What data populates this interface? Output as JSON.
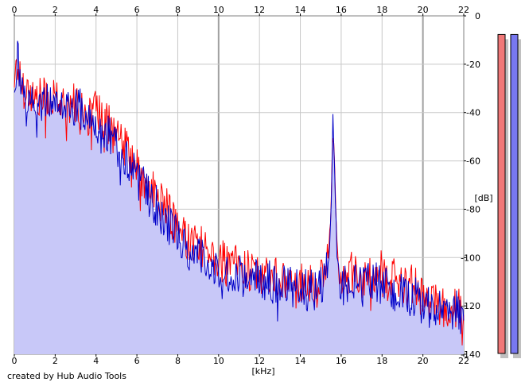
{
  "app": {
    "credit": "created by Hub Audio Tools"
  },
  "colors": {
    "background": "#ffffff",
    "grid": "#c8c8c8",
    "grid_major": "#a0a0a0",
    "channel_left": "#ff0000",
    "channel_right": "#0000c8",
    "fill_area": "#c8c8f8",
    "meter_left": "#f07878",
    "meter_right": "#7878f0",
    "meter_shadow": "#c0c0c0"
  },
  "chart_data": {
    "type": "line",
    "xlabel": "[kHz]",
    "ylabel": "[dB]",
    "xlim": [
      0,
      22
    ],
    "ylim": [
      -140,
      0
    ],
    "x_ticks": [
      "0",
      "2",
      "4",
      "6",
      "8",
      "10",
      "12",
      "14",
      "16",
      "18",
      "20",
      "22"
    ],
    "y_ticks": [
      "0",
      "-20",
      "-40",
      "-60",
      "-80",
      "-100",
      "-120",
      "-140"
    ],
    "grid": true,
    "series": [
      {
        "color": "#ff0000",
        "x": [
          0.0,
          0.15,
          0.3,
          0.5,
          0.8,
          1.0,
          1.5,
          2.0,
          2.5,
          3.0,
          3.5,
          4.0,
          4.5,
          5.0,
          5.5,
          6.0,
          6.5,
          7.0,
          7.5,
          8.0,
          8.5,
          9.0,
          9.5,
          10.0,
          11.0,
          12.0,
          13.0,
          14.0,
          14.8,
          15.2,
          15.4,
          15.5,
          15.6,
          15.7,
          15.8,
          16.0,
          16.5,
          17.0,
          17.5,
          18.0,
          18.5,
          19.0,
          19.5,
          20.0,
          20.5,
          21.0,
          21.5,
          22.0
        ],
        "y": [
          -25,
          -20,
          -27,
          -30,
          -32,
          -35,
          -34,
          -33,
          -35,
          -36,
          -38,
          -40,
          -44,
          -50,
          -56,
          -62,
          -70,
          -75,
          -80,
          -88,
          -92,
          -95,
          -98,
          -101,
          -104,
          -106,
          -108,
          -110,
          -112,
          -108,
          -98,
          -80,
          -40,
          -70,
          -95,
          -110,
          -106,
          -108,
          -105,
          -106,
          -108,
          -110,
          -112,
          -116,
          -118,
          -120,
          -121,
          -122
        ]
      },
      {
        "color": "#0000c8",
        "x": [
          0.0,
          0.15,
          0.3,
          0.5,
          0.8,
          1.0,
          1.5,
          2.0,
          2.5,
          3.0,
          3.5,
          4.0,
          4.5,
          5.0,
          5.5,
          6.0,
          6.5,
          7.0,
          7.5,
          8.0,
          8.5,
          9.0,
          9.5,
          10.0,
          11.0,
          12.0,
          13.0,
          14.0,
          14.8,
          15.2,
          15.4,
          15.5,
          15.6,
          15.7,
          15.8,
          16.0,
          16.5,
          17.0,
          17.5,
          18.0,
          18.5,
          19.0,
          19.5,
          20.0,
          20.5,
          21.0,
          21.5,
          22.0
        ],
        "y": [
          -28,
          -15,
          -30,
          -32,
          -35,
          -37,
          -36,
          -35,
          -37,
          -38,
          -40,
          -43,
          -48,
          -54,
          -60,
          -67,
          -74,
          -79,
          -85,
          -92,
          -96,
          -99,
          -101,
          -104,
          -107,
          -109,
          -111,
          -113,
          -114,
          -110,
          -100,
          -82,
          -42,
          -72,
          -98,
          -113,
          -110,
          -112,
          -110,
          -112,
          -113,
          -114,
          -116,
          -119,
          -120,
          -121,
          -122,
          -123
        ]
      }
    ]
  },
  "meters": {
    "left_level": 0.97,
    "right_level": 0.97
  }
}
